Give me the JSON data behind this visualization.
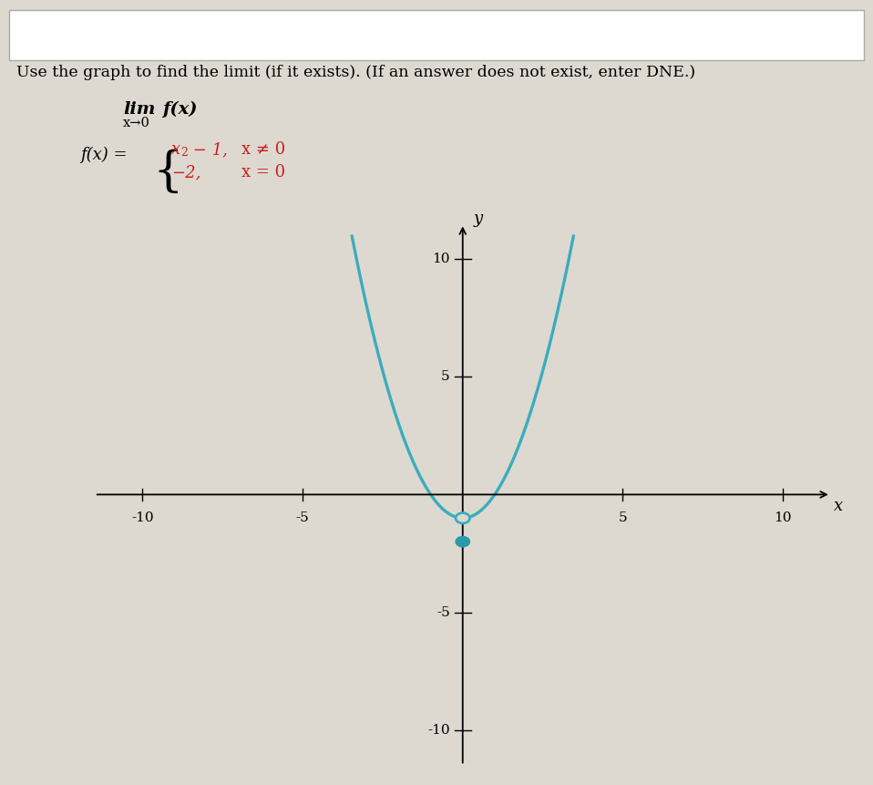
{
  "title_text": "Use the graph to find the limit (if it exists). (If an answer does not exist, enter DNE.)",
  "xlim": [
    -12,
    12
  ],
  "ylim": [
    -12,
    12
  ],
  "xticks": [
    -10,
    -5,
    5,
    10
  ],
  "yticks": [
    -10,
    -5,
    5,
    10
  ],
  "ytick_labels": [
    "-10",
    "-5",
    "5",
    "10"
  ],
  "xtick_labels": [
    "-10",
    "-5",
    "5",
    "10"
  ],
  "curve_color": "#3aadbe",
  "dot_fill_color": "#2a9aab",
  "open_circle_color": "#3aadbe",
  "background_color": "#ddd9d0",
  "curve_linewidth": 2.4,
  "open_hole_x": 0,
  "open_hole_y": -1,
  "filled_dot_x": 0,
  "filled_dot_y": -2,
  "x_curve_max": 3.46,
  "xlabel": "x",
  "ylabel": "y"
}
